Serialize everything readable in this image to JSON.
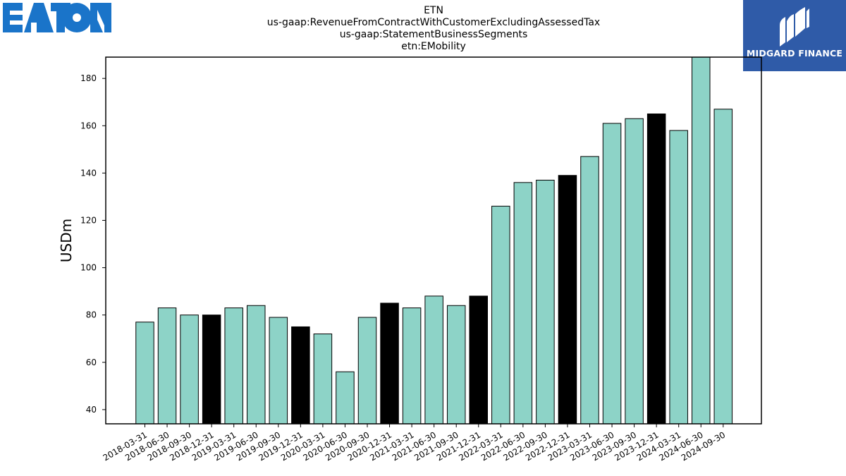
{
  "logos": {
    "left": {
      "text": "EATON",
      "color": "#1a74c9"
    },
    "right": {
      "text": "MIDGARD FINANCE",
      "background": "#2f5ba8"
    }
  },
  "chart_data": {
    "type": "bar",
    "title": [
      "ETN",
      "us-gaap:RevenueFromContractWithCustomerExcludingAssessedTax",
      "us-gaap:StatementBusinessSegments",
      "etn:EMobility"
    ],
    "xlabel": "",
    "ylabel": "USDm",
    "ylim": [
      34,
      189
    ],
    "yticks": [
      40,
      60,
      80,
      100,
      120,
      140,
      160,
      180
    ],
    "grid": false,
    "colors": {
      "quarter": "#8dd3c7",
      "year_end": "#000000"
    },
    "categories": [
      "2018-03-31",
      "2018-06-30",
      "2018-09-30",
      "2018-12-31",
      "2019-03-31",
      "2019-06-30",
      "2019-09-30",
      "2019-12-31",
      "2020-03-31",
      "2020-06-30",
      "2020-09-30",
      "2020-12-31",
      "2021-03-31",
      "2021-06-30",
      "2021-09-30",
      "2021-12-31",
      "2022-03-31",
      "2022-06-30",
      "2022-09-30",
      "2022-12-31",
      "2023-03-31",
      "2023-06-30",
      "2023-09-30",
      "2023-12-31",
      "2024-03-31",
      "2024-06-30",
      "2024-09-30"
    ],
    "values": [
      77,
      83,
      80,
      80,
      83,
      84,
      79,
      75,
      72,
      56,
      79,
      85,
      83,
      88,
      84,
      88,
      126,
      136,
      137,
      139,
      147,
      161,
      163,
      165,
      158,
      189,
      167
    ]
  }
}
